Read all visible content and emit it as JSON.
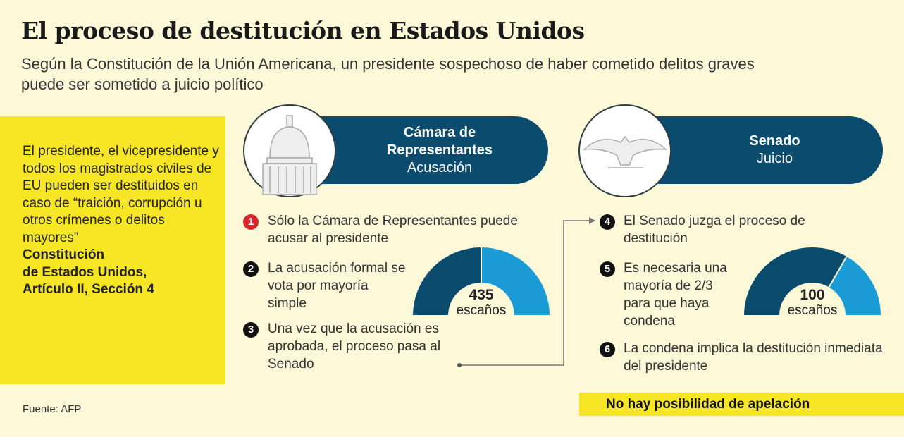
{
  "title": "El proceso de destitución en Estados Unidos",
  "subtitle": "Según la Constitución de la Unión Americana, un presidente sospechoso de haber cometido delitos graves puede ser sometido a juicio político",
  "quote": {
    "text": "El presidente, el vicepresidente y todos los magistrados civiles de EU pueden ser destituidos en caso de “traición, corrupción u otros crímenes o delitos mayores”",
    "citation": [
      "Constitución",
      "de Estados Unidos,",
      "Artículo II, Sección 4"
    ]
  },
  "house": {
    "title_lines": [
      "Cámara de",
      "Representantes"
    ],
    "subtitle": "Acusación",
    "icon": "capitol-icon",
    "seats": "435",
    "seats_label": "escaños",
    "majority_fraction": 0.5
  },
  "senate": {
    "title": "Senado",
    "subtitle": "Juicio",
    "icon": "eagle-icon",
    "seats": "100",
    "seats_label": "escaños",
    "majority_fraction": 0.667
  },
  "steps": [
    {
      "n": "1",
      "text": "Sólo la Cámara de Representantes puede acusar al presidente"
    },
    {
      "n": "2",
      "text": "La acusación formal se vota por mayoría simple"
    },
    {
      "n": "3",
      "text": "Una vez que la acusación es aprobada, el proceso pasa al Senado"
    },
    {
      "n": "4",
      "text": "El Senado juzga el proceso de destitución"
    },
    {
      "n": "5",
      "text": "Es necesaria una mayoría de 2/3 para que haya condena"
    },
    {
      "n": "6",
      "text": "La condena implica la destitución inmediata del presidente"
    }
  ],
  "appeal": "No hay posibilidad de apelación",
  "source": "Fuente: AFP",
  "colors": {
    "dark_blue": "#0b4b6e",
    "light_blue": "#1a9bd5",
    "yellow": "#f7e626",
    "red": "#d9262c"
  }
}
